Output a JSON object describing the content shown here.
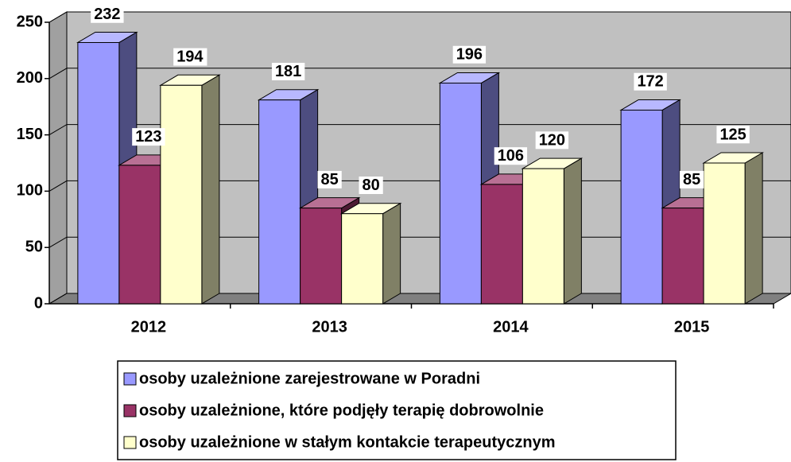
{
  "chart_data": {
    "type": "bar3d",
    "categories": [
      "2012",
      "2013",
      "2014",
      "2015"
    ],
    "series": [
      {
        "name": "osoby uzależnione zarejestrowane w Poradni",
        "color": "#9999ff",
        "values": [
          232,
          181,
          196,
          172
        ]
      },
      {
        "name": "osoby uzależnione, które podjęły terapię dobrowolnie",
        "color": "#993366",
        "values": [
          123,
          85,
          106,
          85
        ]
      },
      {
        "name": "osoby uzależnione w stałym kontakcie terapeutycznym",
        "color": "#ffffcc",
        "values": [
          194,
          80,
          120,
          125
        ]
      }
    ],
    "ylim": [
      0,
      250
    ],
    "yticks": [
      0,
      50,
      100,
      150,
      200,
      250
    ],
    "grid": true,
    "legend": "bottom"
  }
}
